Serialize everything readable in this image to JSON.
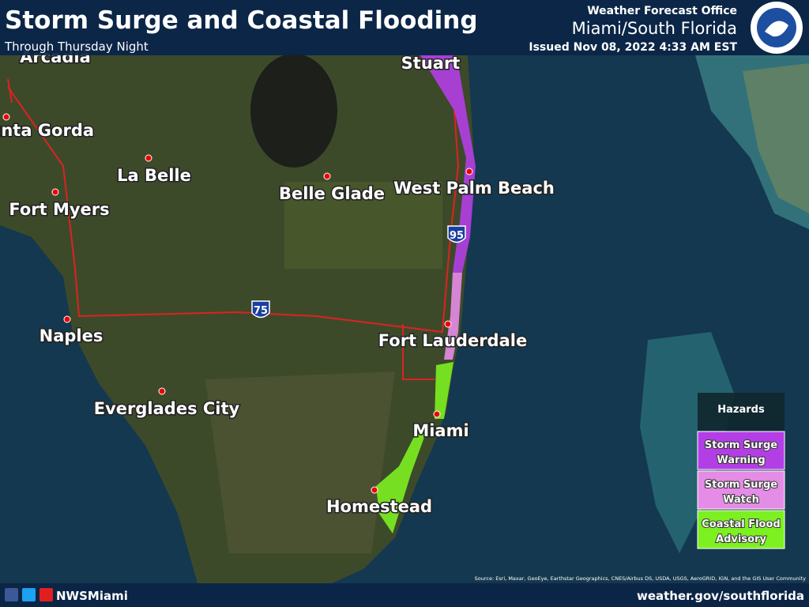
{
  "header": {
    "title": "Storm Surge and Coastal Flooding",
    "subtitle": "Through Thursday Night",
    "office": "Weather Forecast Office",
    "region": "Miami/South Florida",
    "issued": "Issued Nov 08, 2022 4:33 AM EST"
  },
  "map": {
    "cities": [
      "Arcadia",
      "Punta Gorda",
      "Stuart",
      "La Belle",
      "Belle Glade",
      "West Palm Beach",
      "Fort Myers",
      "Naples",
      "Fort Lauderdale",
      "Everglades City",
      "Miami",
      "Homestead"
    ],
    "highways": [
      "95",
      "75"
    ],
    "source": "Source: Esri, Maxar, GeoEye, Earthstar Geographics, CNES/Airbus DS, USDA, USGS, AeroGRID, IGN, and the GIS User Community"
  },
  "legend": {
    "title": "Hazards",
    "items": [
      {
        "label": "Storm Surge Warning",
        "color": "#b43ee6"
      },
      {
        "label": "Storm Surge Watch",
        "color": "#e58ce6"
      },
      {
        "label": "Coastal Flood Advisory",
        "color": "#7cf020"
      }
    ]
  },
  "footer": {
    "social": "NWSMiami",
    "url": "weather.gov/southflorida"
  }
}
